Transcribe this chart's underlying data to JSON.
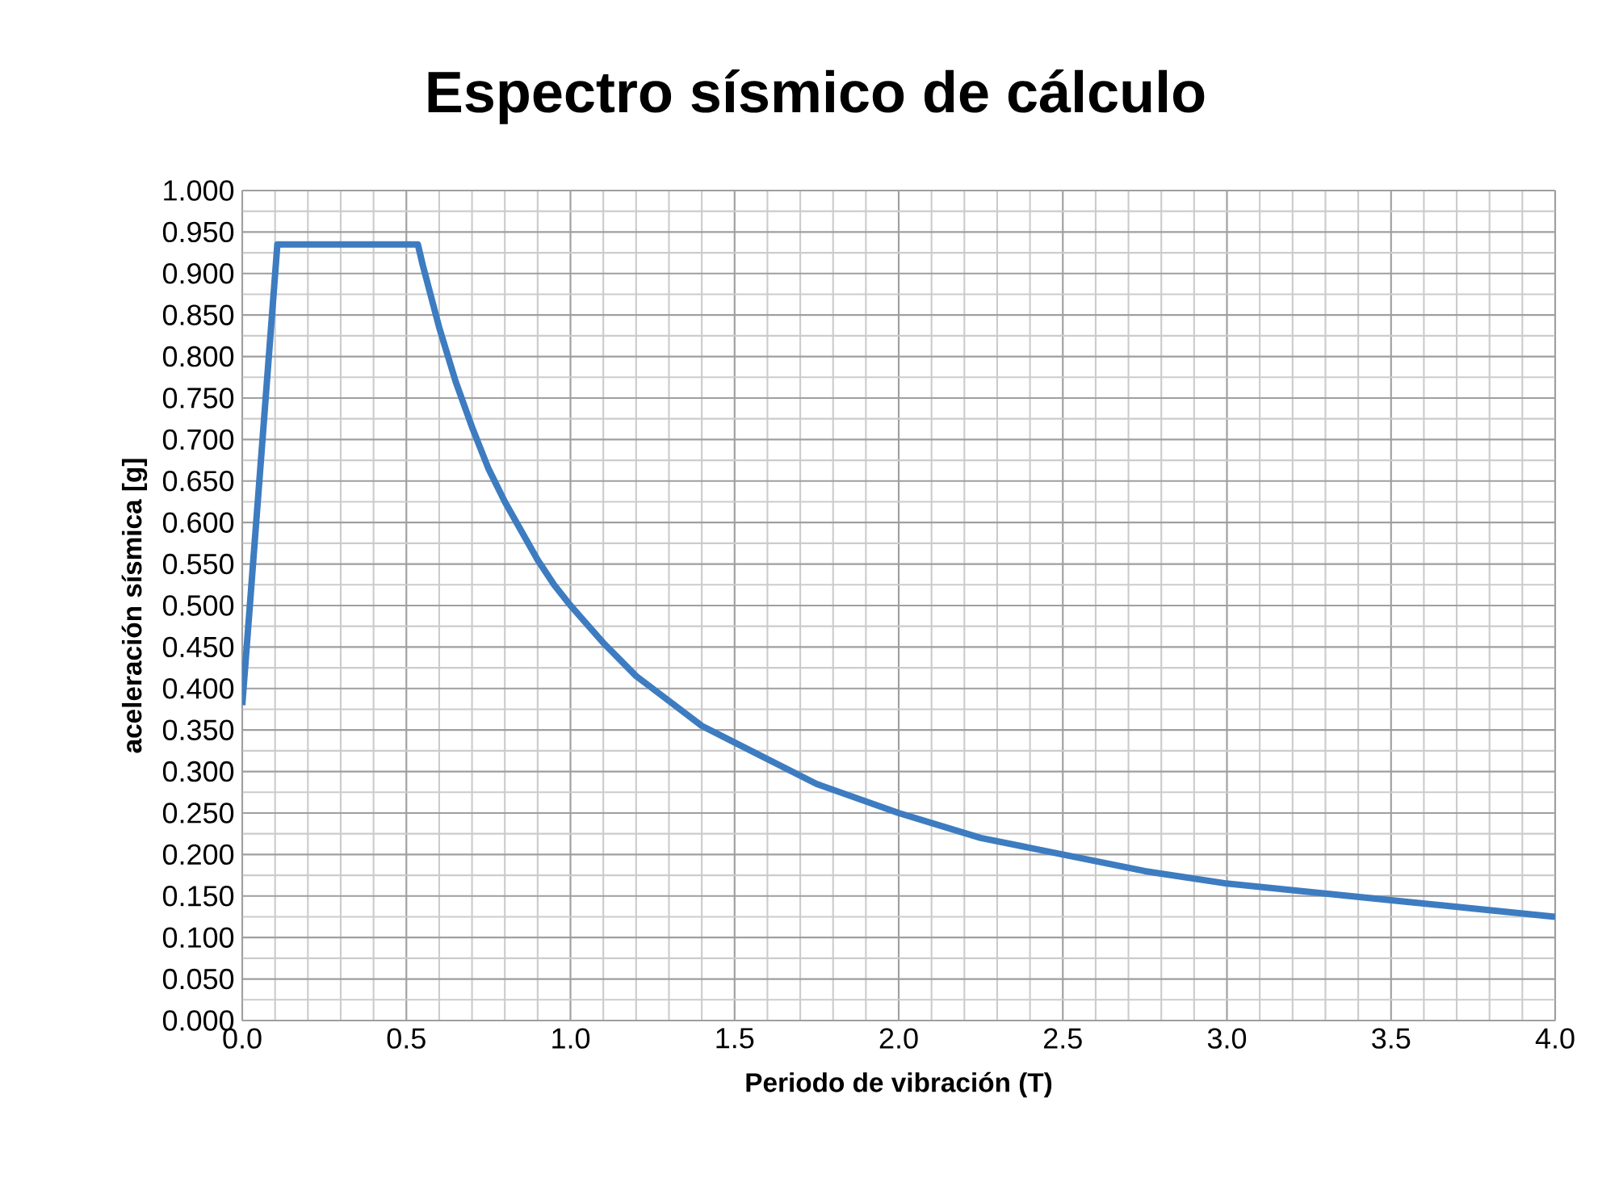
{
  "chart_data": {
    "type": "line",
    "title": "Espectro sísmico de cálculo",
    "xlabel": "Periodo de vibración (T)",
    "ylabel": "aceleración sísmica [g]",
    "x": [
      0,
      0.107,
      0.535,
      0.55,
      0.6,
      0.65,
      0.7,
      0.75,
      0.8,
      0.85,
      0.9,
      0.95,
      1.0,
      1.1,
      1.2,
      1.3,
      1.4,
      1.5,
      1.75,
      2.0,
      2.25,
      2.5,
      2.75,
      3.0,
      3.25,
      3.5,
      3.75,
      4.0
    ],
    "series": [
      {
        "color": "#3d7cc0",
        "values": [
          0.38,
          0.935,
          0.935,
          0.91,
          0.835,
          0.77,
          0.715,
          0.665,
          0.625,
          0.59,
          0.555,
          0.525,
          0.5,
          0.455,
          0.415,
          0.385,
          0.355,
          0.335,
          0.285,
          0.25,
          0.22,
          0.2,
          0.18,
          0.165,
          0.155,
          0.145,
          0.135,
          0.125
        ]
      }
    ],
    "xlim": [
      0,
      4
    ],
    "ylim": [
      0,
      1
    ],
    "xticks": [
      {
        "value": 0,
        "label": "0.0"
      },
      {
        "value": 0.5,
        "label": "0.5"
      },
      {
        "value": 1,
        "label": "1.0"
      },
      {
        "value": 1.5,
        "label": "1.5"
      },
      {
        "value": 2,
        "label": "2.0"
      },
      {
        "value": 2.5,
        "label": "2.5"
      },
      {
        "value": 3,
        "label": "3.0"
      },
      {
        "value": 3.5,
        "label": "3.5"
      },
      {
        "value": 4,
        "label": "4.0"
      }
    ],
    "yticks": [
      {
        "value": 0,
        "label": "0.000"
      },
      {
        "value": 0.05,
        "label": "0.050"
      },
      {
        "value": 0.1,
        "label": "0.100"
      },
      {
        "value": 0.15,
        "label": "0.150"
      },
      {
        "value": 0.2,
        "label": "0.200"
      },
      {
        "value": 0.25,
        "label": "0.250"
      },
      {
        "value": 0.3,
        "label": "0.300"
      },
      {
        "value": 0.35,
        "label": "0.350"
      },
      {
        "value": 0.4,
        "label": "0.400"
      },
      {
        "value": 0.45,
        "label": "0.450"
      },
      {
        "value": 0.5,
        "label": "0.500"
      },
      {
        "value": 0.55,
        "label": "0.550"
      },
      {
        "value": 0.6,
        "label": "0.600"
      },
      {
        "value": 0.65,
        "label": "0.650"
      },
      {
        "value": 0.7,
        "label": "0.700"
      },
      {
        "value": 0.75,
        "label": "0.750"
      },
      {
        "value": 0.8,
        "label": "0.800"
      },
      {
        "value": 0.85,
        "label": "0.850"
      },
      {
        "value": 0.9,
        "label": "0.900"
      },
      {
        "value": 0.95,
        "label": "0.950"
      },
      {
        "value": 1,
        "label": "1.000"
      }
    ],
    "grid": true,
    "marker": "none",
    "line_style": "solid"
  }
}
